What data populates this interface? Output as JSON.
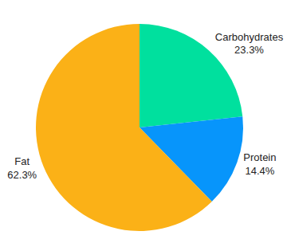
{
  "chart_data": {
    "type": "pie",
    "categories": [
      "Carbohydrates",
      "Protein",
      "Fat"
    ],
    "values": [
      23.3,
      14.4,
      62.3
    ],
    "value_labels": [
      "23.3%",
      "14.4%",
      "62.3%"
    ],
    "colors": [
      "#00e09e",
      "#0795fb",
      "#fbb117"
    ],
    "data_labels": true
  }
}
